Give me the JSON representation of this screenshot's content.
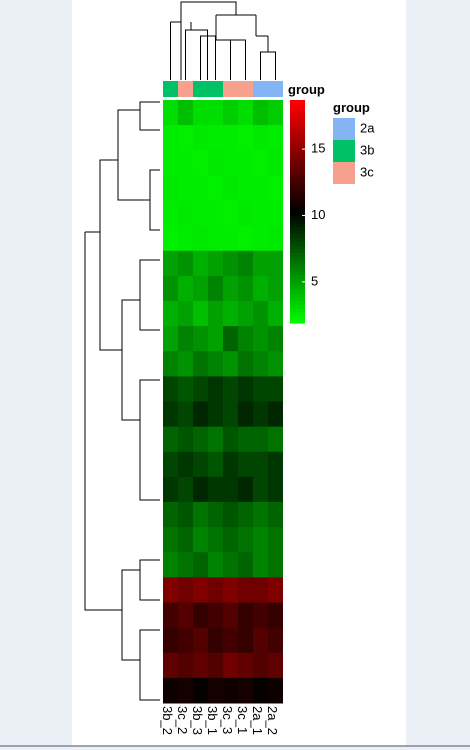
{
  "chart_data": {
    "type": "heatmap",
    "columns": [
      "3b_2",
      "3c_2",
      "3b_3",
      "3b_1",
      "3c_3",
      "3c_1",
      "2a_1",
      "2a_2"
    ],
    "column_groups": [
      "3b",
      "3c",
      "3b",
      "3b",
      "3c",
      "3c",
      "2a",
      "2a"
    ],
    "annotation_name": "group",
    "annotation_legend_title": "group",
    "annotation_levels": [
      "2a",
      "3b",
      "3c"
    ],
    "annotation_colors": [
      "#84b4f4",
      "#00c166",
      "#f8a08e"
    ],
    "colors": [
      "#00ff00",
      "#000000",
      "#ff0000"
    ],
    "clim": [
      1.9,
      18.7
    ],
    "cticks": [
      5,
      10,
      15
    ],
    "values": [
      [
        3,
        4,
        3,
        3,
        3.5,
        3,
        4,
        3.5
      ],
      [
        2.5,
        2.4,
        2.6,
        2.5,
        2.5,
        2.4,
        2.6,
        2.5
      ],
      [
        2.5,
        2.5,
        2.4,
        2.6,
        2.5,
        2.5,
        2.4,
        2.6
      ],
      [
        2.6,
        2.5,
        2.5,
        2.4,
        2.6,
        2.5,
        2.5,
        2.4
      ],
      [
        2.5,
        2.6,
        2.5,
        2.5,
        2.4,
        2.6,
        2.5,
        2.5
      ],
      [
        2.4,
        2.5,
        2.6,
        2.5,
        2.5,
        2.4,
        2.5,
        2.6
      ],
      [
        5,
        5.5,
        4.5,
        5,
        5.5,
        6,
        5,
        5
      ],
      [
        5.5,
        4.5,
        5,
        6,
        5,
        5.5,
        4.5,
        5
      ],
      [
        4.5,
        5,
        4,
        5,
        4.5,
        5,
        5.5,
        4.5
      ],
      [
        5,
        6,
        5.5,
        5,
        7,
        6,
        5.5,
        6
      ],
      [
        6,
        5.5,
        6.5,
        6,
        5.5,
        6.5,
        6,
        5.5
      ],
      [
        8,
        7.5,
        8,
        8.5,
        8,
        8.5,
        8,
        8
      ],
      [
        8.5,
        8,
        9,
        8.5,
        8,
        9,
        8.5,
        9
      ],
      [
        7,
        7.5,
        7,
        6.5,
        7.5,
        7,
        7,
        6.5
      ],
      [
        8,
        8.5,
        8,
        7.5,
        8.5,
        8,
        8,
        8.5
      ],
      [
        8.5,
        8,
        9,
        8.5,
        8.5,
        9,
        8,
        8.5
      ],
      [
        7,
        7.5,
        6.5,
        7,
        7.5,
        7,
        6.5,
        7
      ],
      [
        6.5,
        7,
        6,
        6.5,
        7,
        6.5,
        6,
        6.5
      ],
      [
        6,
        6.5,
        7,
        6,
        6.5,
        7,
        6,
        6.5
      ],
      [
        14.5,
        14,
        14.5,
        14,
        14.5,
        14,
        14,
        14.5
      ],
      [
        12.5,
        13,
        12,
        12.5,
        13,
        12,
        12.5,
        12
      ],
      [
        12,
        12.5,
        13,
        12,
        12.5,
        12,
        13,
        12.5
      ],
      [
        13.5,
        13,
        13.5,
        13,
        14,
        13.5,
        13,
        13.5
      ],
      [
        10.8,
        11,
        10.5,
        11,
        10.8,
        11,
        10.5,
        10.8
      ]
    ]
  }
}
